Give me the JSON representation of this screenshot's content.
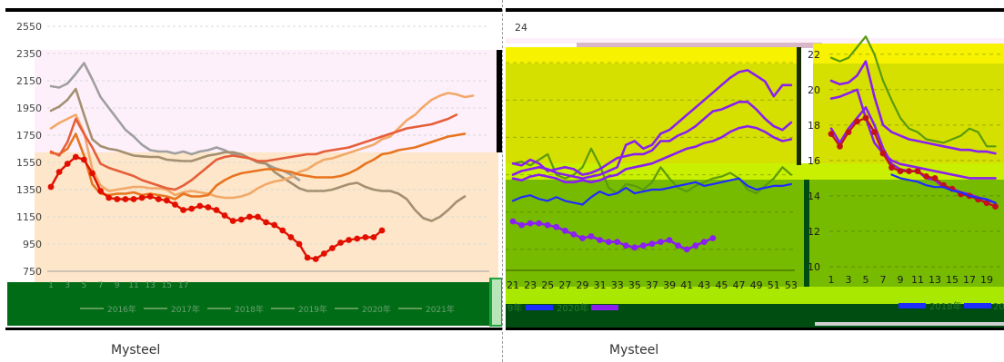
{
  "colors": {
    "pink": "#fdf0fa",
    "peach": "#fde6c9",
    "legend_green": "#006d16",
    "bright_green": "#1ea43c",
    "yellow": "#f7f200",
    "olive": "#d6e000",
    "mid_green": "#77bb00",
    "dark_green": "#004d12",
    "s_gray": "#9f9f9f",
    "s_tan": "#a48f70",
    "s_lightorange": "#f2a868",
    "s_orange": "#e8741f",
    "s_salmon": "#e55e39",
    "s_red": "#e20f00",
    "r_green": "#5a9a0e",
    "r_purple": "#8a1ff0",
    "r_blue": "#1d2cff",
    "r_red": "#c1141a"
  },
  "left_chart": {
    "source": "Mysteel",
    "legend_items": [
      "2016年",
      "2017年",
      "2018年",
      "2019年",
      "2020年",
      "2021年"
    ],
    "chart_data": {
      "type": "line",
      "ylim": [
        750,
        2550
      ],
      "yticks": [
        750,
        950,
        1150,
        1350,
        1550,
        1750,
        1950,
        2150,
        2350,
        2550
      ],
      "x": [
        1,
        2,
        3,
        4,
        5,
        6,
        7,
        8,
        9,
        10,
        11,
        12,
        13,
        14,
        15,
        16,
        17,
        18,
        19,
        20,
        21,
        22,
        23,
        24,
        25,
        26,
        27,
        28,
        29,
        30,
        31,
        32,
        33,
        34,
        35,
        36,
        37,
        38,
        39,
        40,
        41,
        42,
        43,
        44,
        45,
        46,
        47,
        48,
        49,
        50,
        51,
        52,
        53
      ],
      "xtick_labels": [
        "1",
        "3",
        "5",
        "7",
        "9",
        "11",
        "13",
        "15",
        "17"
      ],
      "series": [
        {
          "color_key": "s_gray",
          "values": [
            2110,
            2100,
            2130,
            2200,
            2280,
            2160,
            2030,
            1950,
            1870,
            1790,
            1740,
            1680,
            1640,
            1630,
            1630,
            1615,
            1630,
            1610,
            1630,
            1640,
            1660,
            1640,
            1610,
            1610,
            1580,
            1555,
            1540,
            1510,
            1490,
            1460,
            1420,
            null,
            null,
            null,
            null,
            null,
            null,
            null,
            null,
            null,
            null,
            null,
            null,
            null,
            null,
            null,
            null,
            null,
            null,
            null,
            null,
            null,
            null
          ]
        },
        {
          "color_key": "s_tan",
          "values": [
            1930,
            1960,
            2010,
            2090,
            1900,
            1720,
            1670,
            1650,
            1640,
            1620,
            1600,
            1595,
            1590,
            1590,
            1570,
            1565,
            1560,
            1560,
            1580,
            1600,
            1610,
            1625,
            1625,
            1610,
            1580,
            1550,
            1540,
            1480,
            1440,
            1400,
            1360,
            1340,
            1340,
            1340,
            1350,
            1370,
            1390,
            1400,
            1370,
            1350,
            1340,
            1340,
            1320,
            1280,
            1200,
            1140,
            1120,
            1150,
            1200,
            1260,
            1300,
            null,
            null
          ]
        },
        {
          "color_key": "s_lightorange",
          "values": [
            1800,
            1840,
            1870,
            1900,
            1770,
            1500,
            1380,
            1340,
            1350,
            1360,
            1370,
            1370,
            1360,
            1360,
            1350,
            1310,
            1330,
            1340,
            1330,
            1320,
            1300,
            1290,
            1290,
            1300,
            1320,
            1360,
            1390,
            1410,
            1420,
            1440,
            1480,
            1500,
            1540,
            1570,
            1580,
            1600,
            1620,
            1640,
            1660,
            1680,
            1720,
            1740,
            1800,
            1860,
            1900,
            1960,
            2010,
            2040,
            2060,
            2050,
            2030,
            2040,
            null
          ]
        },
        {
          "color_key": "s_orange",
          "values": [
            1620,
            1610,
            1650,
            1760,
            1600,
            1390,
            1320,
            1310,
            1320,
            1320,
            1330,
            1310,
            1320,
            1310,
            1300,
            1280,
            1320,
            1300,
            1300,
            1310,
            1380,
            1420,
            1450,
            1470,
            1480,
            1490,
            1500,
            1500,
            1490,
            1480,
            1460,
            1450,
            1440,
            1440,
            1440,
            1450,
            1470,
            1500,
            1540,
            1570,
            1610,
            1620,
            1640,
            1650,
            1660,
            1680,
            1700,
            1720,
            1740,
            1750,
            1760,
            null,
            null
          ]
        },
        {
          "color_key": "s_salmon",
          "values": [
            1630,
            1600,
            1700,
            1870,
            1760,
            1660,
            1540,
            1510,
            1490,
            1470,
            1450,
            1420,
            1400,
            1380,
            1360,
            1350,
            1380,
            1420,
            1470,
            1520,
            1570,
            1590,
            1600,
            1590,
            1580,
            1560,
            1560,
            1570,
            1580,
            1590,
            1600,
            1610,
            1610,
            1630,
            1640,
            1650,
            1660,
            1680,
            1700,
            1720,
            1740,
            1760,
            1780,
            1800,
            1810,
            1820,
            1830,
            1850,
            1870,
            1900,
            null,
            null,
            null
          ]
        },
        {
          "color_key": "s_red",
          "values": [
            1370,
            1480,
            1540,
            1590,
            1570,
            1470,
            1340,
            1290,
            1280,
            1280,
            1280,
            1290,
            1300,
            1280,
            1270,
            1240,
            1200,
            1210,
            1230,
            1220,
            1200,
            1160,
            1120,
            1130,
            1150,
            1150,
            1110,
            1090,
            1050,
            1000,
            950,
            850,
            840,
            880,
            920,
            960,
            980,
            990,
            1000,
            1000,
            1050,
            null,
            null,
            null,
            null,
            null,
            null,
            null,
            null,
            null,
            null,
            null,
            null
          ]
        }
      ]
    }
  },
  "right_chart": {
    "source": "Mysteel",
    "legend_left": [
      "9年",
      "2020年"
    ],
    "legend_right": [
      "2018年",
      "20"
    ],
    "sub_a": {
      "type": "line",
      "ylim": [
        10,
        24
      ],
      "ytick_top_label": "24",
      "xtick_labels": [
        "21",
        "23",
        "25",
        "27",
        "29",
        "31",
        "33",
        "35",
        "37",
        "39",
        "41",
        "43",
        "45",
        "47",
        "49",
        "51",
        "53"
      ],
      "x_start": 21,
      "x_end": 53,
      "series": [
        {
          "color_key": "r_green",
          "values": [
            16.6,
            16.7,
            16.5,
            16.8,
            17.1,
            16.0,
            15.8,
            16.0,
            16.4,
            17.4,
            16.5,
            15.3,
            15.0,
            15.5,
            15.4,
            15.2,
            15.6,
            16.4,
            15.8,
            15.3,
            15.1,
            15.4,
            15.6,
            15.8,
            15.9,
            16.1,
            15.8,
            15.2,
            15.0,
            15.4,
            15.8,
            16.4,
            16.0
          ]
        },
        {
          "color_key": "r_purple",
          "values": [
            16.0,
            16.2,
            16.3,
            16.4,
            16.3,
            16.1,
            16.0,
            15.9,
            15.8,
            15.9,
            16.0,
            16.2,
            16.4,
            17.6,
            17.8,
            17.4,
            17.6,
            18.2,
            18.4,
            18.8,
            19.2,
            19.6,
            20.0,
            20.4,
            20.8,
            21.2,
            21.5,
            21.6,
            21.3,
            21.0,
            20.2,
            20.8,
            20.8
          ]
        },
        {
          "color_key": "r_purple",
          "values": [
            16.6,
            16.5,
            16.8,
            16.6,
            16.2,
            16.3,
            16.4,
            16.3,
            16.0,
            16.1,
            16.3,
            16.6,
            16.9,
            17.0,
            17.1,
            17.1,
            17.3,
            17.8,
            17.8,
            18.1,
            18.3,
            18.6,
            19.0,
            19.4,
            19.5,
            19.7,
            19.9,
            19.9,
            19.5,
            19.0,
            18.6,
            18.4,
            18.8
          ]
        },
        {
          "color_key": "r_purple",
          "values": [
            15.8,
            15.7,
            15.9,
            16.0,
            15.9,
            15.8,
            15.6,
            15.6,
            15.7,
            15.6,
            15.7,
            15.9,
            16.0,
            16.3,
            16.4,
            16.5,
            16.6,
            16.8,
            17.0,
            17.2,
            17.4,
            17.5,
            17.7,
            17.8,
            18.0,
            18.3,
            18.5,
            18.6,
            18.5,
            18.3,
            18.0,
            17.8,
            17.9
          ]
        },
        {
          "color_key": "r_blue",
          "values": [
            14.6,
            14.8,
            14.9,
            14.7,
            14.6,
            14.8,
            14.6,
            14.5,
            14.4,
            14.8,
            15.1,
            14.9,
            15.0,
            15.3,
            15.0,
            15.1,
            15.2,
            15.2,
            15.3,
            15.4,
            15.5,
            15.6,
            15.4,
            15.5,
            15.6,
            15.7,
            15.8,
            15.4,
            15.2,
            15.3,
            15.4,
            15.4,
            15.5
          ]
        },
        {
          "color_key": "r_purple",
          "values": [
            13.5,
            13.3,
            13.4,
            13.4,
            13.3,
            13.2,
            13.0,
            12.8,
            12.6,
            12.7,
            12.5,
            12.4,
            12.4,
            12.2,
            12.1,
            12.2,
            12.3,
            12.4,
            12.5,
            12.2,
            12.0,
            12.2,
            12.4,
            12.6,
            null,
            null,
            null,
            null,
            null,
            null,
            null,
            null,
            null
          ]
        }
      ]
    },
    "sub_b": {
      "type": "line",
      "ylim": [
        10,
        22.5
      ],
      "yticks": [
        10,
        12,
        14,
        16,
        18,
        20,
        22
      ],
      "xtick_labels": [
        "1",
        "3",
        "5",
        "7",
        "9",
        "11",
        "13",
        "15",
        "17",
        "19"
      ],
      "series": [
        {
          "color_key": "r_green",
          "values": [
            21.8,
            21.6,
            21.8,
            22.4,
            23.0,
            22.0,
            20.5,
            19.4,
            18.4,
            17.8,
            17.6,
            17.2,
            17.1,
            17.0,
            17.2,
            17.4,
            17.8,
            17.6,
            16.8,
            16.8
          ]
        },
        {
          "color_key": "r_purple",
          "values": [
            20.5,
            20.3,
            20.4,
            20.8,
            21.6,
            19.6,
            18.0,
            17.6,
            17.4,
            17.2,
            17.1,
            17.0,
            16.9,
            16.8,
            16.7,
            16.6,
            16.6,
            16.5,
            16.5,
            16.4
          ]
        },
        {
          "color_key": "r_purple",
          "values": [
            19.5,
            19.6,
            19.8,
            20.0,
            18.4,
            17.0,
            16.4,
            16.0,
            15.8,
            15.7,
            15.6,
            15.5,
            15.4,
            15.3,
            15.2,
            15.1,
            15.0,
            15.0,
            15.0,
            15.0
          ]
        },
        {
          "color_key": "r_purple",
          "values": [
            17.8,
            17.0,
            17.8,
            18.4,
            19.0,
            18.0,
            16.7,
            15.8,
            15.5,
            15.4,
            15.4,
            15.0,
            14.9,
            14.5,
            14.4,
            14.2,
            14.1,
            13.9,
            13.8,
            13.6
          ]
        },
        {
          "color_key": "r_red",
          "values": [
            17.5,
            16.8,
            17.6,
            18.2,
            18.4,
            17.6,
            16.4,
            15.6,
            15.4,
            15.4,
            15.4,
            15.1,
            15.0,
            14.6,
            14.4,
            14.1,
            14.0,
            13.8,
            13.6,
            13.4
          ]
        },
        {
          "color_key": "r_blue",
          "values": [
            null,
            null,
            null,
            null,
            null,
            null,
            null,
            15.2,
            15.0,
            14.9,
            14.8,
            14.6,
            14.5,
            14.5,
            14.3,
            14.2,
            14.0,
            13.9,
            13.8,
            13.6
          ]
        }
      ]
    }
  }
}
